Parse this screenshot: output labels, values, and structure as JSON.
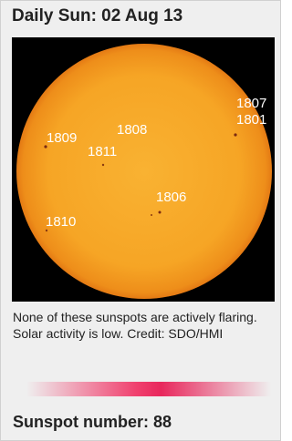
{
  "header": {
    "title": "Daily Sun: 02 Aug 13"
  },
  "sunspots": [
    "1807",
    "1801",
    "1809",
    "1808",
    "1811",
    "1806",
    "1810"
  ],
  "caption": "None of these sunspots are actively flaring. Solar activity is low. Credit: SDO/HMI",
  "footer": {
    "text": "Sunspot number: 88"
  }
}
